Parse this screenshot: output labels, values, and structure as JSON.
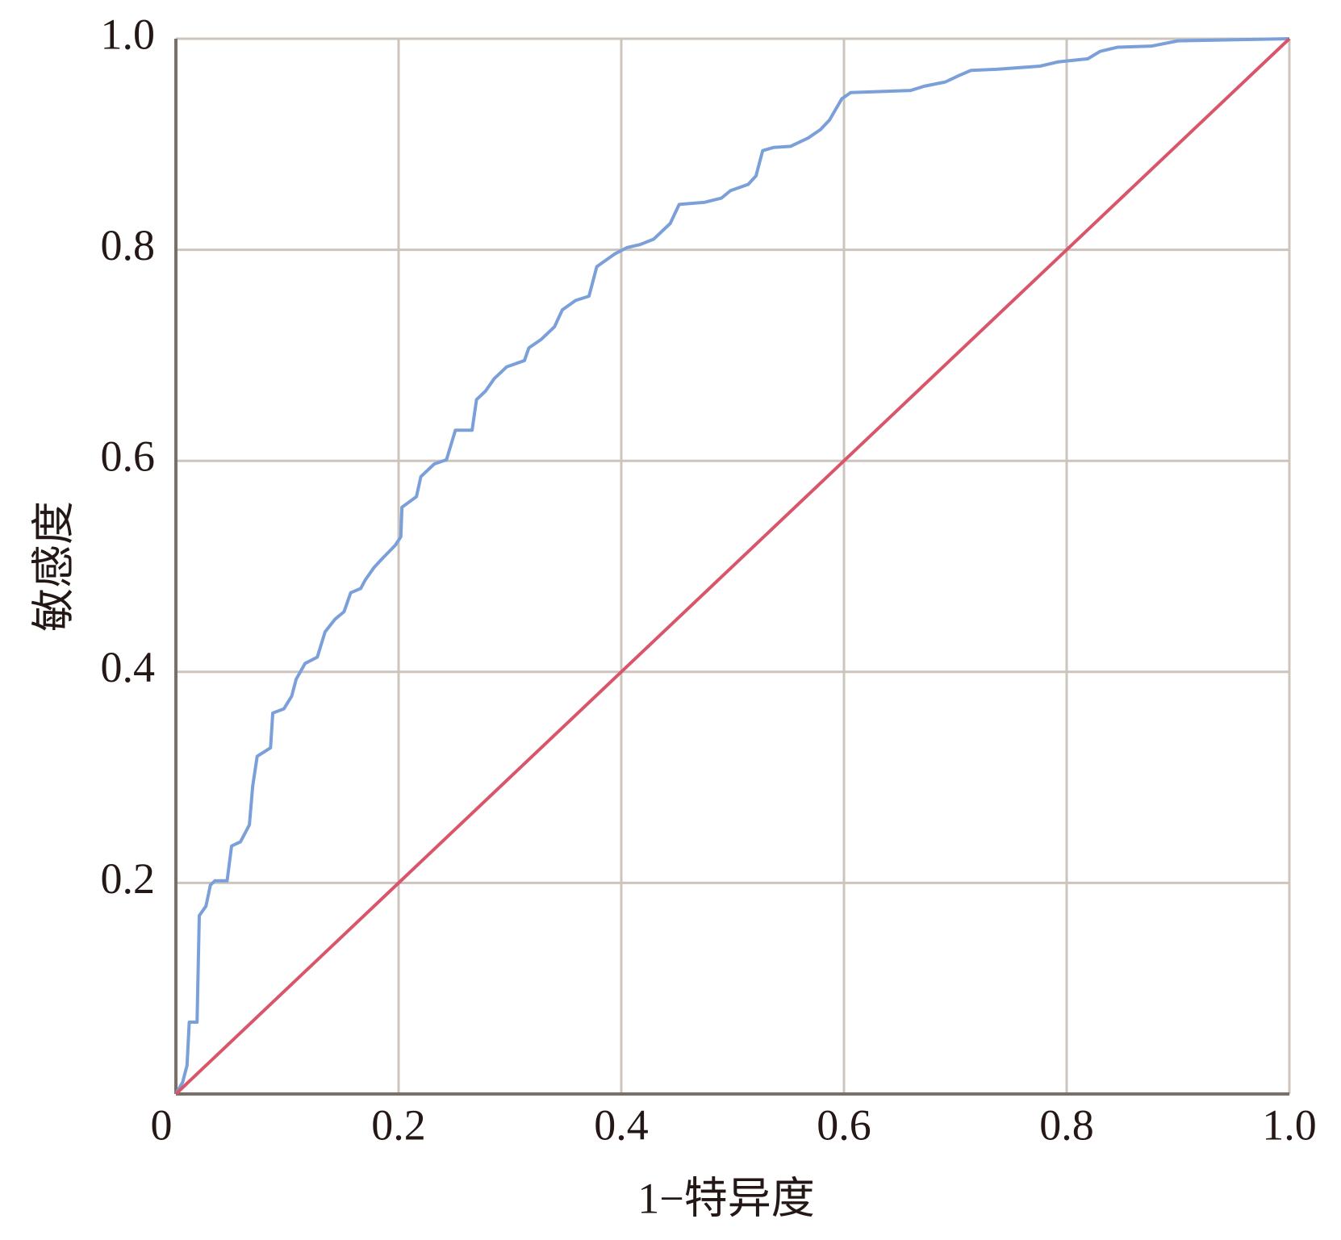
{
  "chart_data": {
    "type": "line",
    "xlabel": "1−特异度",
    "ylabel": "敏感度",
    "xlim": [
      0,
      1
    ],
    "ylim": [
      0,
      1
    ],
    "xticks": [
      0,
      0.2,
      0.4,
      0.6,
      0.8,
      {
        "value": 1,
        "label": "1.0"
      }
    ],
    "yticks": [
      0.2,
      0.4,
      0.6,
      0.8,
      {
        "value": 1,
        "label": "1.0"
      }
    ],
    "grid": true,
    "series": [
      {
        "color": "#7b9fd8",
        "x": [
          0,
          0.006,
          0.01,
          0.012,
          0.019,
          0.021,
          0.027,
          0.031,
          0.035,
          0.046,
          0.05,
          0.058,
          0.066,
          0.069,
          0.073,
          0.085,
          0.087,
          0.097,
          0.104,
          0.108,
          0.116,
          0.127,
          0.134,
          0.143,
          0.151,
          0.157,
          0.166,
          0.17,
          0.178,
          0.185,
          0.197,
          0.202,
          0.203,
          0.216,
          0.22,
          0.232,
          0.243,
          0.251,
          0.266,
          0.27,
          0.278,
          0.286,
          0.297,
          0.313,
          0.317,
          0.328,
          0.34,
          0.347,
          0.359,
          0.371,
          0.378,
          0.394,
          0.405,
          0.417,
          0.429,
          0.436,
          0.444,
          0.452,
          0.475,
          0.49,
          0.498,
          0.514,
          0.521,
          0.527,
          0.537,
          0.552,
          0.568,
          0.579,
          0.587,
          0.598,
          0.606,
          0.66,
          0.672,
          0.691,
          0.703,
          0.714,
          0.737,
          0.776,
          0.792,
          0.819,
          0.83,
          0.846,
          0.876,
          0.9,
          1
        ],
        "values": [
          0,
          0.011,
          0.027,
          0.068,
          0.068,
          0.169,
          0.178,
          0.198,
          0.202,
          0.202,
          0.235,
          0.239,
          0.255,
          0.292,
          0.32,
          0.328,
          0.361,
          0.365,
          0.377,
          0.393,
          0.408,
          0.414,
          0.438,
          0.45,
          0.457,
          0.475,
          0.479,
          0.487,
          0.499,
          0.507,
          0.52,
          0.528,
          0.556,
          0.566,
          0.585,
          0.597,
          0.601,
          0.629,
          0.629,
          0.658,
          0.666,
          0.678,
          0.689,
          0.695,
          0.707,
          0.715,
          0.727,
          0.743,
          0.752,
          0.756,
          0.784,
          0.796,
          0.802,
          0.805,
          0.81,
          0.817,
          0.825,
          0.843,
          0.845,
          0.849,
          0.856,
          0.862,
          0.87,
          0.894,
          0.897,
          0.898,
          0.906,
          0.914,
          0.923,
          0.943,
          0.949,
          0.951,
          0.955,
          0.959,
          0.965,
          0.97,
          0.971,
          0.974,
          0.978,
          0.981,
          0.988,
          0.992,
          0.993,
          0.998,
          1
        ]
      },
      {
        "color": "#d9566a",
        "x": [
          0,
          1
        ],
        "values": [
          0,
          1
        ]
      }
    ]
  }
}
